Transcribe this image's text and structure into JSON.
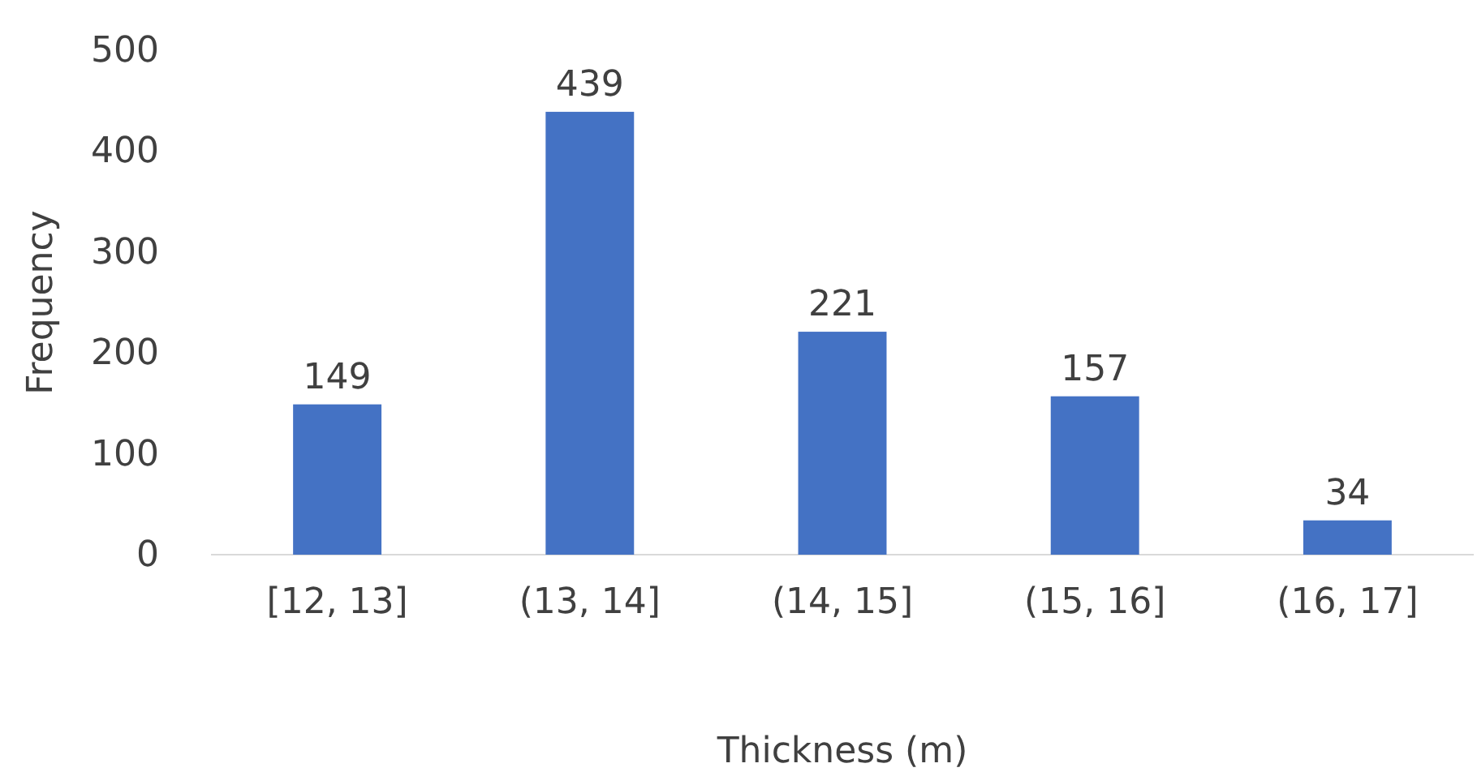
{
  "chart_data": {
    "type": "bar",
    "xlabel": "Thickness (m)",
    "ylabel": "Frequency",
    "categories": [
      "[12, 13]",
      "(13, 14]",
      "(14, 15]",
      "(15, 16]",
      "(16, 17]"
    ],
    "values": [
      149,
      439,
      221,
      157,
      34
    ],
    "color": "#4472c4",
    "ylim": [
      0,
      500
    ],
    "yticks": [
      0,
      100,
      200,
      300,
      400,
      500
    ],
    "grid": false,
    "data_labels": true
  }
}
